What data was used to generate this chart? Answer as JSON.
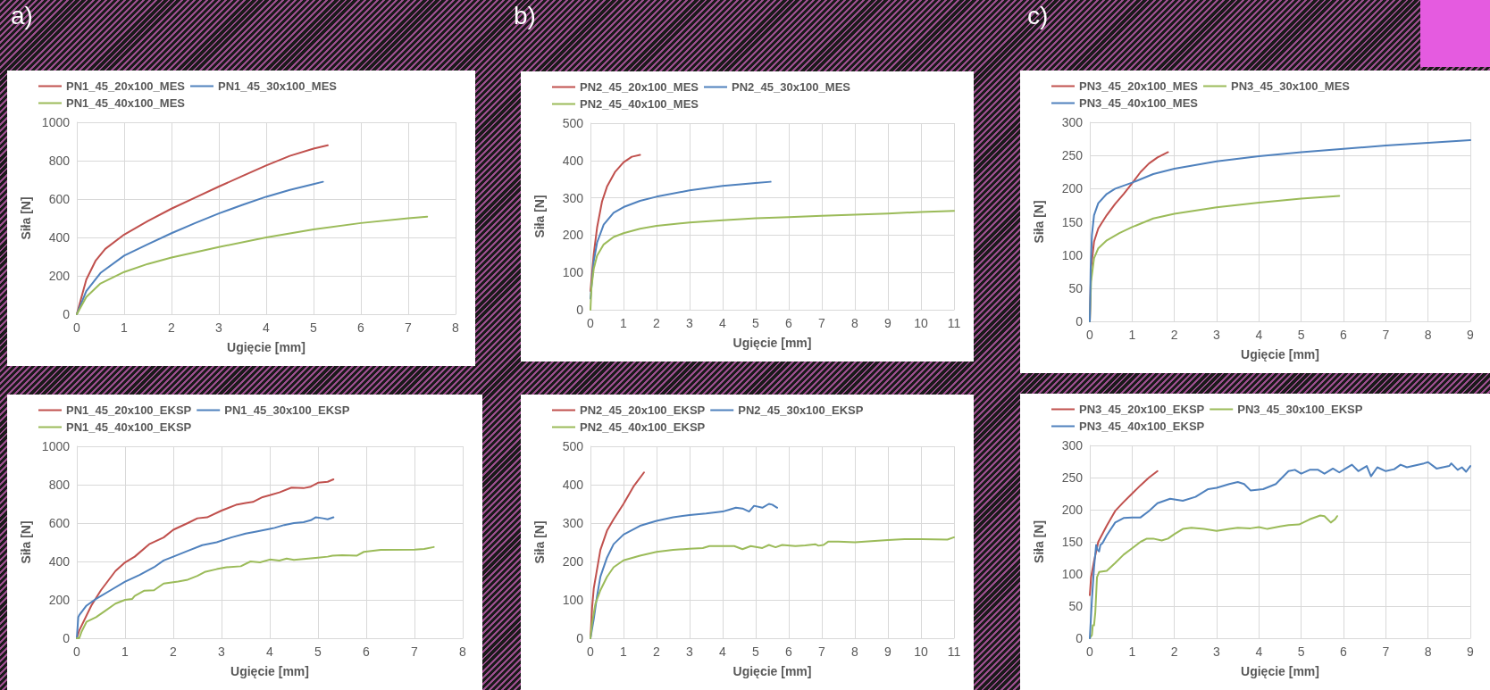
{
  "chart_data": [
    {
      "type": "line",
      "title": "a)",
      "xlabel": "Ugięcie [mm]",
      "ylabel": "Siła [N]",
      "xlim": [
        0,
        8
      ],
      "xticks": [
        0,
        1,
        2,
        3,
        4,
        5,
        6,
        7,
        8
      ],
      "ylim": [
        0,
        1000
      ],
      "yticks": [
        0,
        200,
        400,
        600,
        800,
        1000
      ],
      "grid": true,
      "legend": "top",
      "series": [
        {
          "name": "PN1_45_20x100_MES",
          "color": "#c0504d",
          "x": [
            0,
            0.2,
            0.4,
            0.6,
            1,
            1.5,
            2,
            2.5,
            3,
            3.5,
            4,
            4.5,
            5,
            5.3
          ],
          "values": [
            0,
            180,
            280,
            340,
            415,
            485,
            550,
            608,
            665,
            720,
            775,
            825,
            863,
            880
          ]
        },
        {
          "name": "PN1_45_30x100_MES",
          "color": "#4f81bd",
          "x": [
            0,
            0.2,
            0.5,
            1,
            1.5,
            2,
            2.5,
            3,
            3.5,
            4,
            4.5,
            5,
            5.2
          ],
          "values": [
            0,
            120,
            215,
            305,
            365,
            422,
            475,
            525,
            570,
            612,
            648,
            678,
            690
          ]
        },
        {
          "name": "PN1_45_40x100_MES",
          "color": "#9bbb59",
          "x": [
            0,
            0.2,
            0.5,
            1,
            1.5,
            2,
            3,
            4,
            5,
            6,
            7,
            7.4
          ],
          "values": [
            0,
            90,
            160,
            220,
            262,
            295,
            350,
            400,
            442,
            475,
            500,
            508
          ]
        }
      ]
    },
    {
      "type": "line",
      "title": "b)",
      "xlabel": "Ugięcie [mm]",
      "ylabel": "Siła [N]",
      "xlim": [
        0,
        11
      ],
      "xticks": [
        0,
        1,
        2,
        3,
        4,
        5,
        6,
        7,
        8,
        9,
        10,
        11
      ],
      "ylim": [
        0,
        500
      ],
      "yticks": [
        0,
        100,
        200,
        300,
        400,
        500
      ],
      "grid": true,
      "legend": "top",
      "series": [
        {
          "name": "PN2_45_20x100_MES",
          "color": "#c0504d",
          "x": [
            0,
            0.05,
            0.1,
            0.2,
            0.35,
            0.5,
            0.75,
            1,
            1.25,
            1.5
          ],
          "values": [
            50,
            100,
            150,
            220,
            290,
            330,
            370,
            395,
            410,
            415
          ]
        },
        {
          "name": "PN2_45_30x100_MES",
          "color": "#4f81bd",
          "x": [
            0,
            0.05,
            0.1,
            0.2,
            0.4,
            0.7,
            1,
            1.5,
            2,
            3,
            4,
            5,
            5.45
          ],
          "values": [
            30,
            80,
            130,
            180,
            228,
            260,
            275,
            292,
            303,
            320,
            332,
            340,
            343
          ]
        },
        {
          "name": "PN2_45_40x100_MES",
          "color": "#9bbb59",
          "x": [
            0,
            0.03,
            0.1,
            0.2,
            0.4,
            0.7,
            1,
            1.5,
            2,
            3,
            4,
            5,
            6,
            7,
            8,
            9,
            10,
            11
          ],
          "values": [
            0,
            60,
            110,
            145,
            175,
            195,
            205,
            217,
            225,
            234,
            240,
            245,
            248,
            252,
            255,
            258,
            262,
            265
          ]
        }
      ]
    },
    {
      "type": "line",
      "title": "c)",
      "xlabel": "Ugięcie [mm]",
      "ylabel": "Siła [N]",
      "xlim": [
        0,
        9
      ],
      "xticks": [
        0,
        1,
        2,
        3,
        4,
        5,
        6,
        7,
        8,
        9
      ],
      "ylim": [
        0,
        300
      ],
      "yticks": [
        0,
        50,
        100,
        150,
        200,
        250,
        300
      ],
      "grid": true,
      "legend": "top",
      "series": [
        {
          "name": "PN3_45_20x100_MES",
          "color": "#c0504d",
          "x": [
            0,
            0.03,
            0.1,
            0.2,
            0.4,
            0.6,
            0.8,
            1,
            1.2,
            1.4,
            1.6,
            1.85
          ],
          "values": [
            0,
            80,
            120,
            140,
            160,
            177,
            192,
            208,
            225,
            238,
            247,
            255
          ]
        },
        {
          "name": "PN3_45_30x100_MES",
          "color": "#9bbb59",
          "x": [
            0,
            0.03,
            0.1,
            0.2,
            0.4,
            0.7,
            1,
            1.5,
            2,
            3,
            4,
            5,
            5.9
          ],
          "values": [
            0,
            60,
            95,
            110,
            122,
            133,
            142,
            155,
            162,
            172,
            179,
            185,
            189
          ]
        },
        {
          "name": "PN3_45_40x100_MES",
          "color": "#4f81bd",
          "x": [
            0,
            0.02,
            0.05,
            0.1,
            0.2,
            0.4,
            0.6,
            1,
            1.5,
            2,
            3,
            4,
            5,
            6,
            7,
            8,
            9
          ],
          "values": [
            0,
            80,
            130,
            160,
            178,
            192,
            200,
            209,
            222,
            230,
            241,
            249,
            255,
            260,
            265,
            269,
            273
          ]
        }
      ]
    },
    {
      "type": "line",
      "xlabel": "Ugięcie [mm]",
      "ylabel": "Siła [N]",
      "xlim": [
        0,
        8
      ],
      "xticks": [
        0,
        1,
        2,
        3,
        4,
        5,
        6,
        7,
        8
      ],
      "ylim": [
        0,
        1000
      ],
      "yticks": [
        0,
        200,
        400,
        600,
        800,
        1000
      ],
      "grid": true,
      "legend": "top",
      "series": [
        {
          "name": "PN1_45_20x100_EKSP",
          "color": "#c0504d",
          "x": [
            0,
            0.05,
            0.3,
            0.5,
            0.8,
            1,
            1.2,
            1.5,
            1.8,
            2,
            2.3,
            2.5,
            2.7,
            3,
            3.3,
            3.5,
            3.65,
            3.85,
            4,
            4.2,
            4.45,
            4.7,
            4.85,
            5,
            5.2,
            5.32
          ],
          "values": [
            0,
            40,
            170,
            250,
            350,
            395,
            425,
            490,
            525,
            565,
            600,
            625,
            630,
            665,
            695,
            705,
            710,
            735,
            745,
            760,
            785,
            782,
            790,
            810,
            815,
            828
          ]
        },
        {
          "name": "PN1_45_30x100_EKSP",
          "color": "#4f81bd",
          "x": [
            0,
            0.03,
            0.05,
            0.2,
            0.4,
            0.7,
            1,
            1.3,
            1.6,
            1.8,
            2,
            2.3,
            2.6,
            2.9,
            3.2,
            3.5,
            3.7,
            4,
            4.1,
            4.3,
            4.5,
            4.7,
            4.85,
            4.95,
            5.1,
            5.2,
            5.32
          ],
          "values": [
            0,
            110,
            120,
            170,
            205,
            250,
            295,
            330,
            370,
            405,
            425,
            455,
            485,
            500,
            525,
            545,
            555,
            570,
            575,
            590,
            600,
            605,
            615,
            630,
            625,
            620,
            630
          ]
        },
        {
          "name": "PN1_45_40x100_EKSP",
          "color": "#9bbb59",
          "x": [
            0,
            0.05,
            0.1,
            0.2,
            0.4,
            0.6,
            0.8,
            1,
            1.15,
            1.2,
            1.4,
            1.6,
            1.8,
            2.1,
            2.3,
            2.5,
            2.65,
            2.9,
            3.1,
            3.4,
            3.6,
            3.8,
            4,
            4.2,
            4.35,
            4.5,
            4.8,
            5,
            5.2,
            5.3,
            5.5,
            5.8,
            5.95,
            6.3,
            7,
            7.2,
            7.4
          ],
          "values": [
            0,
            0,
            35,
            85,
            110,
            145,
            180,
            200,
            205,
            220,
            248,
            250,
            285,
            295,
            305,
            325,
            345,
            360,
            370,
            375,
            400,
            395,
            410,
            405,
            415,
            408,
            415,
            420,
            425,
            430,
            432,
            430,
            450,
            460,
            462,
            465,
            475
          ]
        }
      ]
    },
    {
      "type": "line",
      "xlabel": "Ugięcie [mm]",
      "ylabel": "Siła [N]",
      "xlim": [
        0,
        11
      ],
      "xticks": [
        0,
        1,
        2,
        3,
        4,
        5,
        6,
        7,
        8,
        9,
        10,
        11
      ],
      "ylim": [
        0,
        500
      ],
      "yticks": [
        0,
        100,
        200,
        300,
        400,
        500
      ],
      "grid": true,
      "legend": "top",
      "series": [
        {
          "name": "PN2_45_20x100_EKSP",
          "color": "#c0504d",
          "x": [
            0,
            0.05,
            0.1,
            0.2,
            0.3,
            0.5,
            0.7,
            1,
            1.3,
            1.62
          ],
          "values": [
            0,
            80,
            130,
            180,
            230,
            280,
            310,
            350,
            395,
            432
          ]
        },
        {
          "name": "PN2_45_30x100_EKSP",
          "color": "#4f81bd",
          "x": [
            0,
            0.1,
            0.2,
            0.3,
            0.5,
            0.7,
            1,
            1.5,
            2,
            2.5,
            3,
            3.5,
            4,
            4.2,
            4.4,
            4.6,
            4.8,
            4.95,
            5.2,
            5.4,
            5.5,
            5.65
          ],
          "values": [
            0,
            50,
            110,
            160,
            210,
            245,
            270,
            293,
            306,
            315,
            321,
            325,
            330,
            335,
            340,
            338,
            330,
            345,
            340,
            350,
            348,
            340
          ]
        },
        {
          "name": "PN2_45_40x100_EKSP",
          "color": "#9bbb59",
          "x": [
            0,
            0.05,
            0.15,
            0.3,
            0.5,
            0.7,
            1,
            1.5,
            2,
            2.5,
            3,
            3.4,
            3.6,
            4,
            4.35,
            4.6,
            4.85,
            5.2,
            5.4,
            5.6,
            5.8,
            6.2,
            6.5,
            6.8,
            6.9,
            7.05,
            7.2,
            7.5,
            8,
            8.5,
            9,
            9.5,
            10,
            10.8,
            11
          ],
          "values": [
            0,
            40,
            90,
            125,
            160,
            185,
            203,
            215,
            225,
            230,
            233,
            235,
            240,
            240,
            240,
            232,
            240,
            235,
            243,
            237,
            243,
            240,
            242,
            245,
            241,
            243,
            252,
            252,
            250,
            253,
            256,
            258,
            258,
            257,
            263
          ]
        }
      ]
    },
    {
      "type": "line",
      "xlabel": "Ugięcie [mm]",
      "ylabel": "Siła [N]",
      "xlim": [
        0,
        9
      ],
      "xticks": [
        0,
        1,
        2,
        3,
        4,
        5,
        6,
        7,
        8,
        9
      ],
      "ylim": [
        0,
        300
      ],
      "yticks": [
        0,
        50,
        100,
        150,
        200,
        250,
        300
      ],
      "grid": true,
      "legend": "top",
      "series": [
        {
          "name": "PN3_45_20x100_EKSP",
          "color": "#c0504d",
          "x": [
            0,
            0.03,
            0.1,
            0.2,
            0.4,
            0.6,
            0.8,
            1,
            1.2,
            1.4,
            1.6
          ],
          "values": [
            67,
            95,
            120,
            150,
            175,
            198,
            212,
            225,
            238,
            250,
            260
          ]
        },
        {
          "name": "PN3_45_30x100_EKSP",
          "color": "#9bbb59",
          "x": [
            0,
            0.05,
            0.07,
            0.1,
            0.13,
            0.17,
            0.22,
            0.4,
            0.6,
            0.8,
            1,
            1.2,
            1.35,
            1.5,
            1.7,
            1.85,
            2,
            2.2,
            2.4,
            2.7,
            3,
            3.3,
            3.5,
            3.8,
            4,
            4.2,
            4.5,
            4.7,
            4.95,
            5.2,
            5.45,
            5.55,
            5.7,
            5.8,
            5.85
          ],
          "values": [
            0,
            5,
            20,
            20,
            40,
            95,
            103,
            105,
            117,
            130,
            140,
            150,
            155,
            155,
            152,
            155,
            162,
            170,
            172,
            170,
            167,
            170,
            172,
            171,
            173,
            170,
            174,
            176,
            177,
            185,
            191,
            190,
            180,
            185,
            190
          ]
        },
        {
          "name": "PN3_45_40x100_EKSP",
          "color": "#4f81bd",
          "x": [
            0,
            0.05,
            0.1,
            0.15,
            0.18,
            0.22,
            0.25,
            0.3,
            0.4,
            0.6,
            0.8,
            1,
            1.2,
            1.4,
            1.6,
            1.9,
            2.2,
            2.5,
            2.8,
            3,
            3.3,
            3.5,
            3.65,
            3.8,
            4.1,
            4.4,
            4.7,
            4.85,
            5,
            5.2,
            5.4,
            5.55,
            5.75,
            5.9,
            6.05,
            6.2,
            6.35,
            6.55,
            6.65,
            6.8,
            7,
            7.2,
            7.35,
            7.5,
            7.9,
            8,
            8.2,
            8.5,
            8.55,
            8.7,
            8.8,
            8.9,
            9
          ],
          "values": [
            0,
            60,
            110,
            145,
            138,
            135,
            145,
            148,
            160,
            180,
            187,
            188,
            188,
            198,
            210,
            217,
            214,
            220,
            232,
            234,
            240,
            243,
            240,
            230,
            232,
            240,
            260,
            262,
            256,
            262,
            262,
            256,
            264,
            258,
            264,
            270,
            260,
            268,
            252,
            266,
            260,
            263,
            270,
            266,
            272,
            274,
            264,
            268,
            272,
            262,
            266,
            259,
            268
          ]
        }
      ]
    }
  ]
}
